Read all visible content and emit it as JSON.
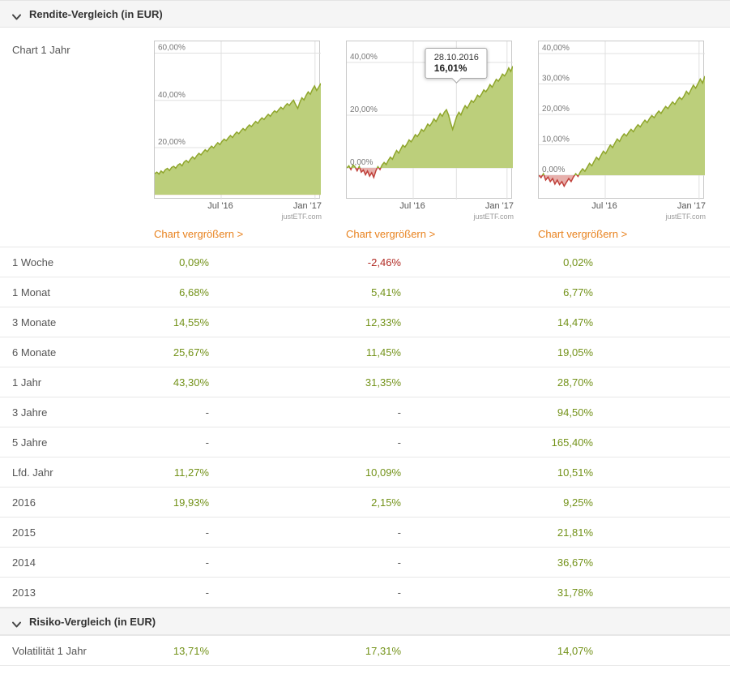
{
  "sections": {
    "rendite": {
      "title": "Rendite-Vergleich (in EUR)"
    },
    "risiko": {
      "title": "Risiko-Vergleich (in EUR)"
    }
  },
  "chart_section": {
    "label": "Chart 1 Jahr",
    "enlarge_label": "Chart vergrößern >",
    "watermark": "justETF.com"
  },
  "tooltip": {
    "date": "28.10.2016",
    "value": "16,01%",
    "chart_index": 1,
    "x": 0.66
  },
  "colors": {
    "positive": "#739219",
    "negative": "#b12b24",
    "link": "#e8821e",
    "area_fill": "#bccf7b",
    "line": "#8fa62c",
    "neg_fill": "#e7b0ac",
    "neg_line": "#c0403a",
    "grid": "#e0e0e0"
  },
  "chart_data": [
    {
      "type": "area",
      "title": "Chart 1 Jahr - ETF 1",
      "x_labels": [
        {
          "label": "Jul '16",
          "pos": 0.4
        },
        {
          "label": "Jan '17",
          "pos": 0.965
        }
      ],
      "yticks": [
        {
          "v": 20,
          "label": "20,00%"
        },
        {
          "v": 40,
          "label": "40,00%"
        },
        {
          "v": 60,
          "label": "60,00%"
        }
      ],
      "ylim": [
        -2,
        65
      ],
      "values": [
        9,
        9.6,
        8.8,
        10.1,
        9.3,
        10.6,
        11.2,
        10.3,
        11.6,
        12.1,
        11.3,
        12.6,
        13.2,
        12.3,
        13.9,
        14.6,
        13.7,
        15.1,
        16.1,
        15.2,
        16.6,
        17.6,
        16.9,
        18.1,
        19.1,
        18.3,
        19.6,
        20.6,
        19.9,
        21.1,
        22.1,
        21.3,
        22.6,
        23.6,
        22.9,
        24.1,
        25.1,
        24.3,
        25.6,
        26.6,
        25.9,
        27.1,
        28.1,
        27.3,
        28.6,
        29.6,
        28.9,
        30.1,
        31.1,
        30.3,
        31.6,
        32.6,
        31.9,
        33.1,
        34.1,
        33.3,
        34.6,
        35.6,
        34.9,
        36.1,
        37.1,
        36.3,
        37.6,
        38.6,
        37.9,
        39.1,
        40.1,
        38.2,
        36.6,
        39.2,
        41.1,
        40.2,
        42.1,
        43.6,
        42.6,
        44.6,
        46.1,
        44.2,
        45.6,
        47.2
      ]
    },
    {
      "type": "area",
      "title": "Chart 1 Jahr - ETF 2",
      "x_labels": [
        {
          "label": "Jul '16",
          "pos": 0.4
        },
        {
          "label": "Jan '17",
          "pos": 0.965
        }
      ],
      "yticks": [
        {
          "v": 0,
          "label": "0,00%"
        },
        {
          "v": 20,
          "label": "20,00%"
        },
        {
          "v": 40,
          "label": "40,00%"
        }
      ],
      "ylim": [
        -12,
        48
      ],
      "values": [
        0,
        0.8,
        -0.6,
        1.2,
        0.3,
        -1.1,
        0.6,
        -1.6,
        -0.8,
        -2.6,
        -1.2,
        -3.1,
        -1.8,
        -3.6,
        -1.1,
        0.5,
        -0.6,
        1.1,
        2.1,
        1.3,
        2.9,
        4.1,
        3.3,
        5.1,
        6.6,
        5.6,
        7.1,
        8.6,
        7.9,
        9.1,
        10.6,
        9.9,
        11.1,
        12.6,
        11.9,
        13.1,
        14.6,
        13.9,
        15.1,
        16.6,
        15.9,
        17.1,
        18.6,
        17.6,
        19.1,
        20.6,
        19.6,
        21.1,
        22.1,
        20.1,
        17.1,
        14.6,
        17.2,
        19.6,
        21.1,
        20.1,
        22.1,
        23.6,
        22.6,
        24.1,
        25.6,
        24.9,
        26.1,
        27.6,
        26.9,
        28.1,
        29.6,
        28.9,
        30.1,
        31.6,
        30.6,
        32.1,
        33.6,
        32.9,
        34.1,
        35.6,
        34.9,
        36.1,
        37.9,
        36.6,
        38.6
      ]
    },
    {
      "type": "area",
      "title": "Chart 1 Jahr - ETF 3",
      "x_labels": [
        {
          "label": "Jul '16",
          "pos": 0.4
        },
        {
          "label": "Jan '17",
          "pos": 0.965
        }
      ],
      "yticks": [
        {
          "v": 0,
          "label": "0,00%"
        },
        {
          "v": 10,
          "label": "10,00%"
        },
        {
          "v": 20,
          "label": "20,00%"
        },
        {
          "v": 30,
          "label": "30,00%"
        },
        {
          "v": 40,
          "label": "40,00%"
        }
      ],
      "ylim": [
        -8,
        44
      ],
      "values": [
        0,
        -0.8,
        0.5,
        -1.6,
        -0.6,
        -2.1,
        -1.1,
        -2.9,
        -1.6,
        -3.1,
        -2.1,
        -3.6,
        -2.3,
        -1.1,
        -2.1,
        -0.6,
        0.5,
        -0.4,
        1.1,
        2.1,
        1.3,
        2.6,
        3.9,
        3.1,
        4.6,
        5.9,
        5.1,
        6.6,
        7.9,
        7.1,
        8.6,
        9.9,
        9.1,
        10.6,
        11.9,
        11.1,
        12.6,
        13.6,
        12.9,
        14.1,
        15.1,
        14.3,
        15.6,
        16.6,
        15.9,
        17.1,
        18.1,
        17.3,
        18.6,
        19.6,
        18.9,
        20.1,
        21.1,
        20.3,
        21.6,
        22.6,
        21.9,
        23.1,
        24.1,
        23.3,
        24.6,
        25.6,
        24.9,
        26.1,
        27.6,
        26.6,
        28.1,
        29.6,
        28.6,
        30.1,
        31.6,
        30.3,
        32.6
      ]
    }
  ],
  "rendite_rows": [
    {
      "label": "1 Woche",
      "values": [
        "0,09%",
        "-2,46%",
        "0,02%"
      ]
    },
    {
      "label": "1 Monat",
      "values": [
        "6,68%",
        "5,41%",
        "6,77%"
      ]
    },
    {
      "label": "3 Monate",
      "values": [
        "14,55%",
        "12,33%",
        "14,47%"
      ]
    },
    {
      "label": "6 Monate",
      "values": [
        "25,67%",
        "11,45%",
        "19,05%"
      ]
    },
    {
      "label": "1 Jahr",
      "values": [
        "43,30%",
        "31,35%",
        "28,70%"
      ]
    },
    {
      "label": "3 Jahre",
      "values": [
        "-",
        "-",
        "94,50%"
      ]
    },
    {
      "label": "5 Jahre",
      "values": [
        "-",
        "-",
        "165,40%"
      ]
    },
    {
      "label": "Lfd. Jahr",
      "values": [
        "11,27%",
        "10,09%",
        "10,51%"
      ]
    },
    {
      "label": "2016",
      "values": [
        "19,93%",
        "2,15%",
        "9,25%"
      ]
    },
    {
      "label": "2015",
      "values": [
        "-",
        "-",
        "21,81%"
      ]
    },
    {
      "label": "2014",
      "values": [
        "-",
        "-",
        "36,67%"
      ]
    },
    {
      "label": "2013",
      "values": [
        "-",
        "-",
        "31,78%"
      ]
    }
  ],
  "risiko_rows": [
    {
      "label": "Volatilität 1 Jahr",
      "values": [
        "13,71%",
        "17,31%",
        "14,07%"
      ]
    }
  ]
}
